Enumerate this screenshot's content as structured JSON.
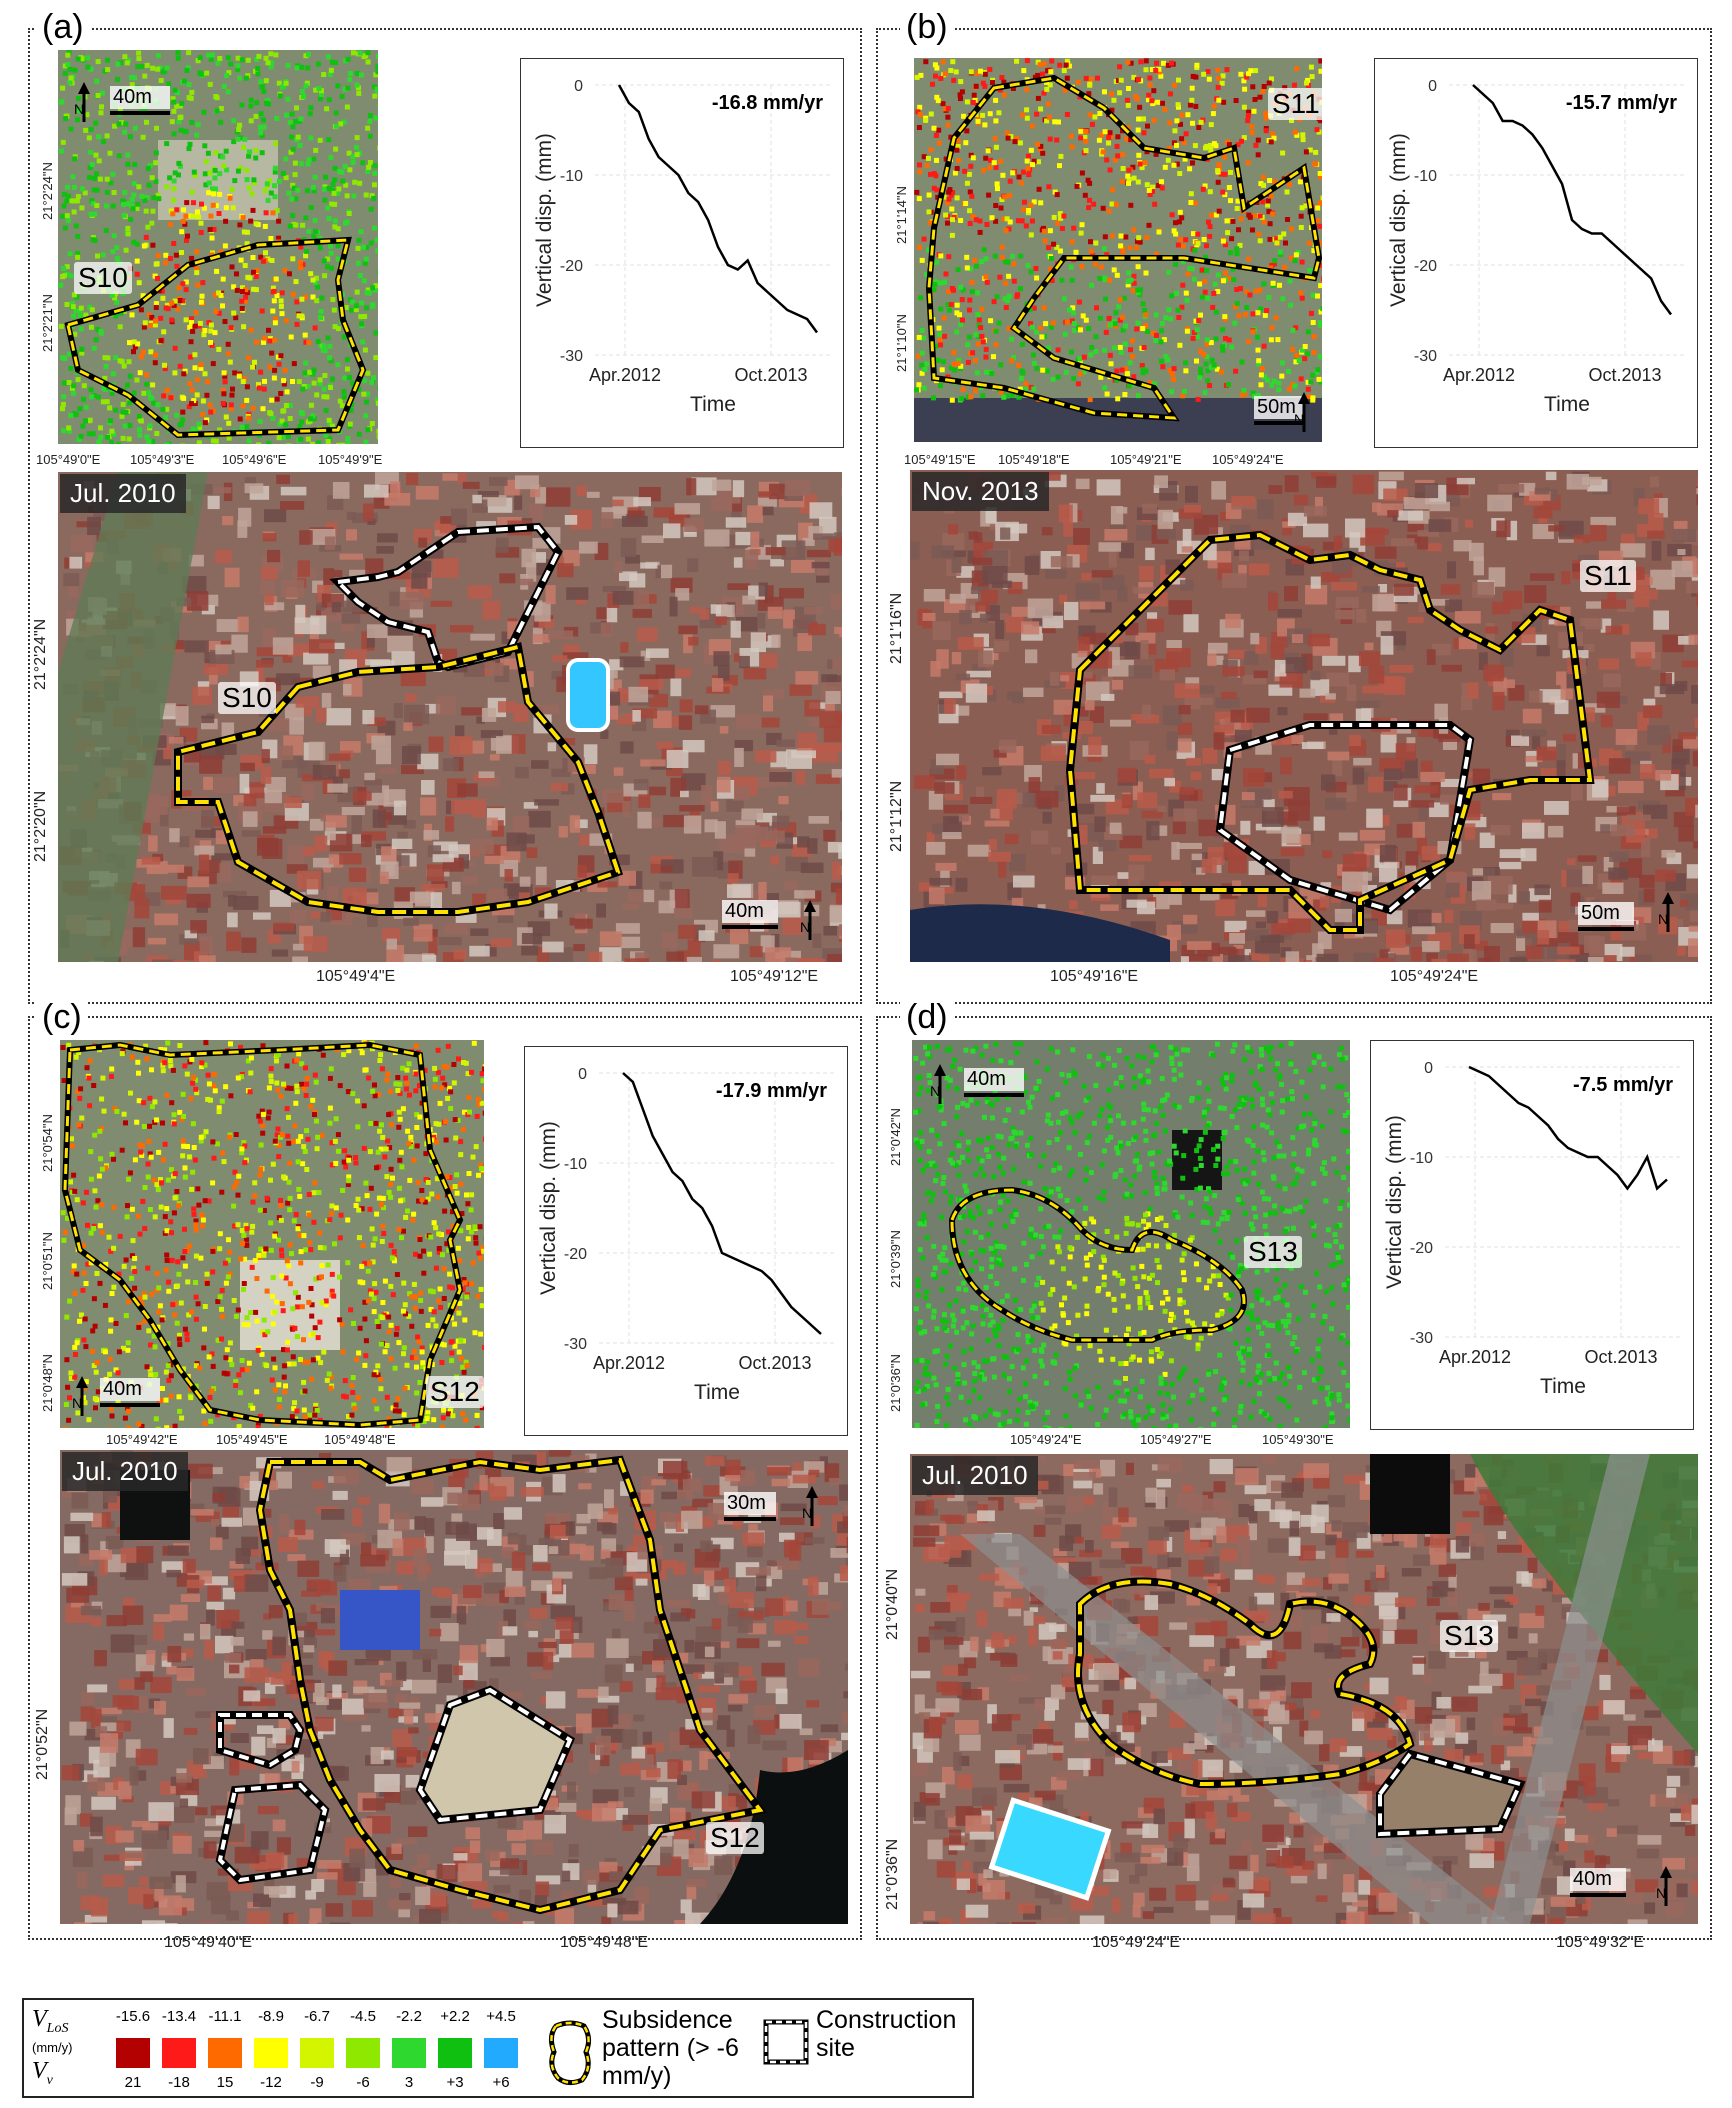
{
  "panels": {
    "a": {
      "letter": "(a)",
      "ts_rate": "-16.8 mm/yr",
      "ts_values": [
        0,
        -2,
        -3,
        -6,
        -8,
        -9,
        -10,
        -12,
        -13,
        -15,
        -18,
        -20,
        -20.5,
        -19.5,
        -22,
        -23,
        -24,
        -25,
        -25.5,
        -26,
        -27.5
      ],
      "sat_site": "S10",
      "sat_ticks_x": [
        "105°49'0\"E",
        "105°49'3\"E",
        "105°49'6\"E",
        "105°49'9\"E"
      ],
      "sat_ticks_y": [
        "21°2'24\"N",
        "21°2'21\"N"
      ],
      "sat_scale": "40m",
      "photo_date": "Jul. 2010",
      "photo_site": "S10",
      "photo_scale": "40m",
      "photo_ticks_x": [
        "105°49'4\"E",
        "105°49'12\"E"
      ],
      "photo_ticks_y": [
        "21°2'24\"N",
        "21°2'20\"N"
      ]
    },
    "b": {
      "letter": "(b)",
      "ts_rate": "-15.7 mm/yr",
      "ts_values": [
        0,
        -1,
        -2,
        -4,
        -4,
        -4.5,
        -5.5,
        -7,
        -9,
        -11,
        -15,
        -16,
        -16.5,
        -16.5,
        -17.5,
        -18.5,
        -19.5,
        -20.5,
        -21.5,
        -24,
        -25.5
      ],
      "sat_site": "S11",
      "sat_ticks_x": [
        "105°49'15\"E",
        "105°49'18\"E",
        "105°49'21\"E",
        "105°49'24\"E"
      ],
      "sat_ticks_y": [
        "21°1'14\"N",
        "21°1'10\"N"
      ],
      "sat_scale": "50m",
      "photo_date": "Nov. 2013",
      "photo_site": "S11",
      "photo_scale": "50m",
      "photo_ticks_x": [
        "105°49'16\"E",
        "105°49'24\"E"
      ],
      "photo_ticks_y": [
        "21°1'16\"N",
        "21°1'12\"N"
      ]
    },
    "c": {
      "letter": "(c)",
      "ts_rate": "-17.9 mm/yr",
      "ts_values": [
        0,
        -1,
        -4,
        -7,
        -9,
        -11,
        -12,
        -14,
        -15,
        -17,
        -20,
        -20.5,
        -21,
        -21.5,
        -22,
        -23,
        -24.5,
        -26,
        -27,
        -28,
        -29
      ],
      "sat_site": "S12",
      "sat_ticks_x": [
        "105°49'42\"E",
        "105°49'45\"E",
        "105°49'48\"E"
      ],
      "sat_ticks_y": [
        "21°0'54\"N",
        "21°0'51\"N",
        "21°0'48\"N"
      ],
      "sat_scale": "40m",
      "photo_date": "Jul. 2010",
      "photo_site": "S12",
      "photo_scale": "30m",
      "photo_ticks_x": [
        "105°49'40\"E",
        "105°49'48\"E"
      ],
      "photo_ticks_y": [
        "21°0'52\"N"
      ]
    },
    "d": {
      "letter": "(d)",
      "ts_rate": "-7.5 mm/yr",
      "ts_values": [
        0,
        -0.5,
        -1,
        -2,
        -3,
        -4,
        -4.5,
        -5.5,
        -6.5,
        -8,
        -9,
        -9.5,
        -10,
        -10,
        -11,
        -12,
        -13.5,
        -12,
        -10,
        -13.5,
        -12.5
      ],
      "sat_site": "S13",
      "sat_ticks_x": [
        "105°49'24\"E",
        "105°49'27\"E",
        "105°49'30\"E"
      ],
      "sat_ticks_y": [
        "21°0'42\"N",
        "21°0'39\"N",
        "21°0'36\"N"
      ],
      "sat_scale": "40m",
      "photo_date": "Jul. 2010",
      "photo_site": "S13",
      "photo_scale": "40m",
      "photo_ticks_x": [
        "105°49'24\"E",
        "105°49'32\"E"
      ],
      "photo_ticks_y": [
        "21°0'40\"N",
        "21°0'36\"N"
      ]
    }
  },
  "ts_axis": {
    "ylabel": "Vertical disp. (mm)",
    "xlabel": "Time",
    "x_ticks": [
      "Apr.2012",
      "Oct.2013"
    ],
    "y_ticks": [
      "0",
      "-10",
      "-20",
      "-30"
    ]
  },
  "legend": {
    "vlos_label": "V",
    "vlos_sub": "LoS",
    "units": "(mm/y)",
    "vv_label": "V",
    "vv_sub": "v",
    "top_values": [
      "-15.6",
      "-13.4",
      "-11.1",
      "-8.9",
      "-6.7",
      "-4.5",
      "-2.2",
      "+2.2",
      "+4.5"
    ],
    "bottom_values": [
      "21",
      "-18",
      "15",
      "-12",
      "-9",
      "-6",
      "3",
      "+3",
      "+6"
    ],
    "colors": [
      "#b30000",
      "#ff1a1a",
      "#ff6a00",
      "#ffff00",
      "#d4f500",
      "#8fe800",
      "#2ed82e",
      "#10c010",
      "#22aaff"
    ],
    "pattern_label": "Subsidence pattern (> -6 mm/y)",
    "construction_label": "Construction site"
  }
}
